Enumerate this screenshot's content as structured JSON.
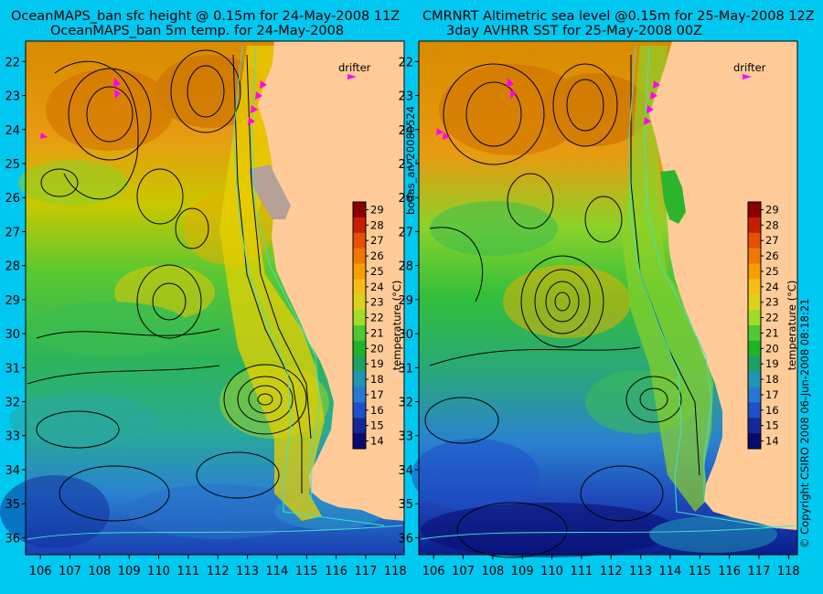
{
  "panels": [
    {
      "title1": "OceanMAPS_ban sfc height @ 0.15m for 24-May-2008 11Z",
      "title2": "OceanMAPS_ban 5m temp. for 24-May-2008",
      "drifter_label": "drifter",
      "colorbar_label": "temperature (°C)"
    },
    {
      "title1": "CMRNRT Altimetric sea level  @0.15m  for 25-May-2008 12Z",
      "title2": "3day AVHRR SST for 25-May-2008 00Z",
      "drifter_label": "drifter",
      "colorbar_label": "temperature (°C)"
    }
  ],
  "side_left": "bodas_an_20080524",
  "side_right": "© Copyright CSIRO 2008    06-Jun-2008 08:18:21",
  "map": {
    "lon_ticks": [
      "106",
      "107",
      "108",
      "109",
      "110",
      "111",
      "112",
      "113",
      "114",
      "115",
      "116",
      "117",
      "118"
    ],
    "lat_ticks": [
      "22",
      "23",
      "24",
      "25",
      "26",
      "27",
      "28",
      "29",
      "30",
      "31",
      "32",
      "33",
      "34",
      "35",
      "36"
    ],
    "lon_range": [
      105.5,
      118.3
    ],
    "lat_range": [
      21.4,
      36.5
    ]
  },
  "colorbar": {
    "ticks": [
      "29",
      "28",
      "27",
      "26",
      "25",
      "24",
      "23",
      "22",
      "21",
      "20",
      "19",
      "18",
      "17",
      "16",
      "15",
      "14"
    ],
    "colors": [
      "#8c0000",
      "#c81e00",
      "#e65000",
      "#f07800",
      "#f5a000",
      "#f5be14",
      "#dcd21e",
      "#a0dc28",
      "#50c832",
      "#1eb428",
      "#1ea064",
      "#1e96b4",
      "#2878d2",
      "#1e50c8",
      "#14289a",
      "#0a0a6e"
    ]
  },
  "colors": {
    "background": "#00c8f0",
    "land": "#ffcc99",
    "contour": "#000000",
    "isobath": "#40e0d0",
    "drifter": "#ff00ff",
    "label": "#000000"
  }
}
